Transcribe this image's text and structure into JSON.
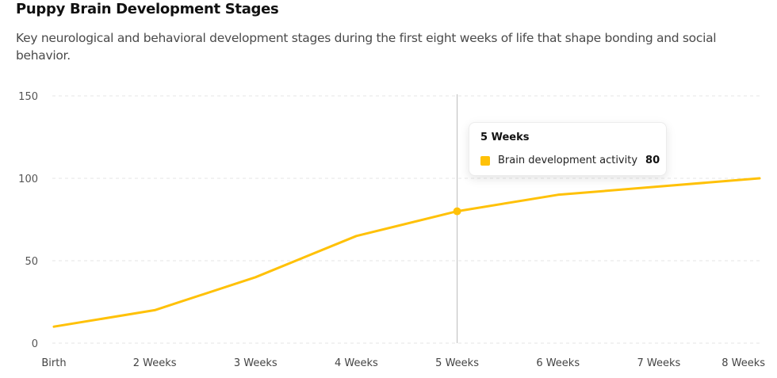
{
  "header": {
    "title": "Puppy Brain Development Stages",
    "subtitle": "Key neurological and behavioral development stages during the first eight weeks of life that shape bonding and social behavior."
  },
  "tooltip": {
    "title": "5 Weeks",
    "series_label": "Brain development activity",
    "value": "80",
    "swatch_color": "#FFC107"
  },
  "colors": {
    "line": "#FFC107",
    "grid": "#e6e6e6",
    "cursor": "#bbbbbb"
  },
  "chart_data": {
    "type": "line",
    "title": "Puppy Brain Development Stages",
    "subtitle": "Key neurological and behavioral development stages during the first eight weeks of life that shape bonding and social behavior.",
    "categories": [
      "Birth",
      "2 Weeks",
      "3 Weeks",
      "4 Weeks",
      "5 Weeks",
      "6 Weeks",
      "7 Weeks",
      "8 Weeks"
    ],
    "series": [
      {
        "name": "Brain development activity",
        "values": [
          10,
          20,
          40,
          65,
          80,
          90,
          95,
          100
        ],
        "color": "#FFC107"
      }
    ],
    "xlabel": "",
    "ylabel": "",
    "ylim": [
      0,
      150
    ],
    "yticks": [
      0,
      50,
      100,
      150
    ],
    "grid": true,
    "legend": "none",
    "active_point": {
      "category": "5 Weeks",
      "value": 80
    }
  }
}
